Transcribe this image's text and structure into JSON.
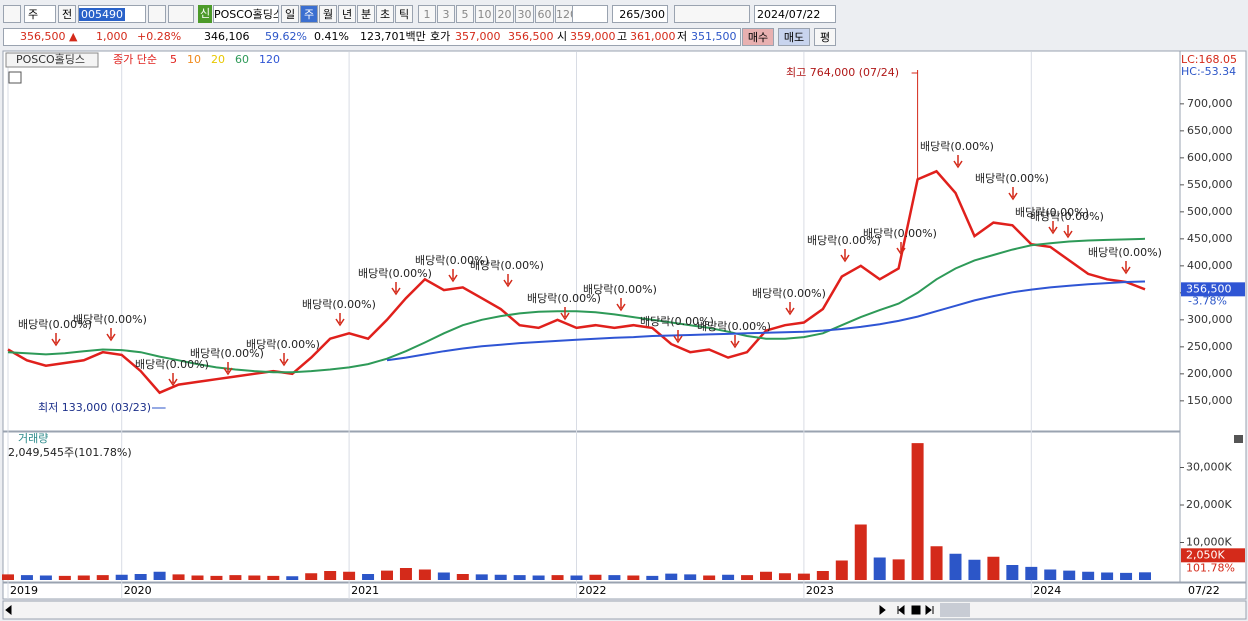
{
  "toolbar": {
    "period_select": "주",
    "prev": "전",
    "code": "005490",
    "name_badge": "신",
    "name": "POSCO홀딩스",
    "periods": [
      "일",
      "주",
      "월",
      "년",
      "분",
      "초",
      "틱"
    ],
    "selected_period": "주",
    "intervals": [
      "1",
      "3",
      "5",
      "10",
      "20",
      "30",
      "60",
      "120"
    ],
    "count": "265",
    "max": "/300",
    "date": "2024/07/22"
  },
  "quote": {
    "price": "356,500",
    "arrow": "▲",
    "change": "1,000",
    "change_pct": "+0.28%",
    "volume": "346,106",
    "volume_ratio": "59.62%",
    "turnover": "0.41%",
    "amount": "123,701백만",
    "ask_label": "호가",
    "ask": "357,000",
    "bid": "356,500",
    "open_label": "시",
    "open": "359,000",
    "high_label": "고",
    "high": "361,000",
    "low_label": "저",
    "low": "351,500",
    "buy": "매수",
    "sell": "매도",
    "avg": "평"
  },
  "chart_data": [
    {
      "type": "line",
      "title": "POSCO홀딩스",
      "legend_prefix": "종가 단순",
      "categories": [
        "2019",
        null,
        null,
        null,
        null,
        null,
        "2020",
        null,
        null,
        null,
        null,
        null,
        null,
        null,
        null,
        null,
        null,
        null,
        "2021",
        null,
        null,
        null,
        null,
        null,
        null,
        null,
        null,
        null,
        null,
        null,
        "2022",
        null,
        null,
        null,
        null,
        null,
        null,
        null,
        null,
        null,
        null,
        null,
        "2023",
        null,
        null,
        null,
        null,
        null,
        null,
        null,
        null,
        null,
        null,
        null,
        "2024",
        null,
        null,
        null,
        null,
        null,
        "07/22"
      ],
      "series": [
        {
          "name": "5",
          "color": "#e0201c",
          "values": [
            245000,
            225000,
            215000,
            220000,
            225000,
            240000,
            235000,
            205000,
            165000,
            180000,
            185000,
            190000,
            195000,
            200000,
            205000,
            200000,
            230000,
            265000,
            275000,
            265000,
            300000,
            340000,
            375000,
            355000,
            360000,
            340000,
            320000,
            290000,
            285000,
            300000,
            285000,
            290000,
            285000,
            290000,
            285000,
            255000,
            240000,
            245000,
            230000,
            240000,
            280000,
            290000,
            295000,
            320000,
            380000,
            400000,
            375000,
            395000,
            560000,
            575000,
            535000,
            455000,
            480000,
            475000,
            440000,
            435000,
            410000,
            385000,
            375000,
            370000,
            356500
          ]
        },
        {
          "name": "60",
          "color": "#2e9a58",
          "values": [
            240000,
            238000,
            236000,
            238000,
            242000,
            245000,
            244000,
            240000,
            232000,
            225000,
            218000,
            212000,
            208000,
            205000,
            203000,
            203000,
            205000,
            208000,
            212000,
            218000,
            228000,
            242000,
            258000,
            275000,
            290000,
            300000,
            307000,
            312000,
            315000,
            316000,
            316000,
            314000,
            310000,
            305000,
            300000,
            295000,
            290000,
            285000,
            278000,
            270000,
            265000,
            265000,
            268000,
            275000,
            290000,
            305000,
            318000,
            330000,
            350000,
            375000,
            395000,
            410000,
            420000,
            430000,
            438000,
            442000,
            445000,
            447000,
            448000,
            449000,
            450000
          ]
        },
        {
          "name": "120",
          "color": "#2f55d4",
          "values": [
            null,
            null,
            null,
            null,
            null,
            null,
            null,
            null,
            null,
            null,
            null,
            null,
            null,
            null,
            null,
            null,
            null,
            null,
            null,
            null,
            225000,
            230000,
            236000,
            242000,
            247000,
            251000,
            254000,
            257000,
            259000,
            261000,
            263000,
            265000,
            267000,
            268000,
            270000,
            271000,
            272000,
            273000,
            274000,
            275000,
            276000,
            277000,
            278000,
            280000,
            283000,
            287000,
            292000,
            298000,
            306000,
            316000,
            326000,
            336000,
            344000,
            351000,
            356000,
            360000,
            363000,
            366000,
            368000,
            370000,
            371000
          ]
        }
      ],
      "extra_legend": [
        {
          "name": "10",
          "color": "#f08a1c"
        },
        {
          "name": "20",
          "color": "#e8c800"
        }
      ],
      "ylim": [
        96000,
        796000
      ],
      "yticks": [
        {
          "value": 150000,
          "label": "150,000"
        },
        {
          "value": 200000,
          "label": "200,000"
        },
        {
          "value": 250000,
          "label": "250,000"
        },
        {
          "value": 300000,
          "label": "300,000"
        },
        {
          "value": 350000,
          "label": "350,000"
        },
        {
          "value": 400000,
          "label": "400,000"
        },
        {
          "value": 450000,
          "label": "450,000"
        },
        {
          "value": 500000,
          "label": "500,000"
        },
        {
          "value": 550000,
          "label": "550,000"
        },
        {
          "value": 600000,
          "label": "600,000"
        },
        {
          "value": 650000,
          "label": "650,000"
        },
        {
          "value": 700000,
          "label": "700,000"
        }
      ],
      "grid": true,
      "annotations": {
        "high": "최고 764,000 (07/24)",
        "low": "최저 133,000 (03/23)",
        "dividend": "배당락(0.00%)"
      },
      "current_value": "356,500",
      "current_change": "-3.78%",
      "lc": "LC:168.05",
      "hc": "HC:-53.34"
    },
    {
      "type": "bar",
      "title": "거래량",
      "subtitle": "2,049,545주(101.78%)",
      "values": [
        1500,
        1300,
        1200,
        1100,
        1200,
        1300,
        1400,
        1600,
        2200,
        1500,
        1200,
        1100,
        1300,
        1200,
        1100,
        1000,
        1800,
        2400,
        2200,
        1600,
        2500,
        3200,
        2800,
        2000,
        1600,
        1500,
        1400,
        1300,
        1200,
        1300,
        1200,
        1400,
        1300,
        1200,
        1100,
        1700,
        1500,
        1200,
        1400,
        1300,
        2200,
        1800,
        1700,
        2400,
        5200,
        14800,
        6000,
        5500,
        36500,
        9000,
        7000,
        5400,
        6200,
        4000,
        3500,
        2800,
        2500,
        2200,
        2000,
        1900,
        2050
      ],
      "up_color": "#d42a1a",
      "down_color": "#2c56c8",
      "ylim": [
        0,
        39200
      ],
      "yticks": [
        {
          "value": 10000,
          "label": "10,000K"
        },
        {
          "value": 20000,
          "label": "20,000K"
        },
        {
          "value": 30000,
          "label": "30,000K"
        }
      ],
      "current_value": "2,050K",
      "current_ratio": "101.78%"
    }
  ]
}
